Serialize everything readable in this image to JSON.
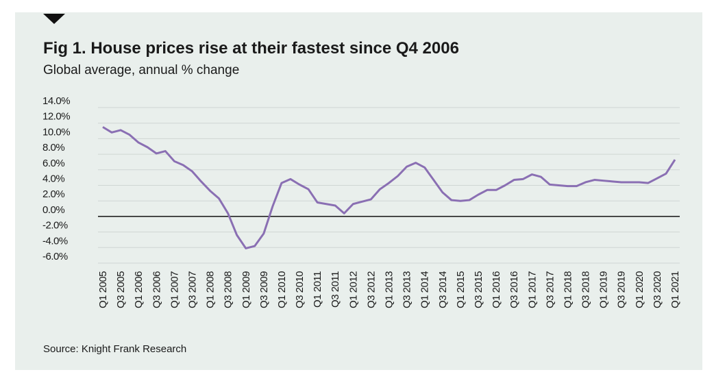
{
  "chart_data": {
    "type": "line",
    "title": "Fig 1. House prices rise at their fastest since Q4 2006",
    "subtitle": "Global average, annual % change",
    "source": "Source: Knight Frank Research",
    "categories": [
      "Q1 2005",
      null,
      "Q3 2005",
      null,
      "Q1 2006",
      null,
      "Q3 2006",
      null,
      "Q1 2007",
      null,
      "Q3 2007",
      null,
      "Q1 2008",
      null,
      "Q3 2008",
      null,
      "Q1 2009",
      null,
      "Q3 2009",
      null,
      "Q1 2010",
      null,
      "Q3 2010",
      null,
      "Q1 2011",
      null,
      "Q3 2011",
      null,
      "Q1 2012",
      null,
      "Q3 2012",
      null,
      "Q1 2013",
      null,
      "Q3 2013",
      null,
      "Q1 2014",
      null,
      "Q3 2014",
      null,
      "Q1 2015",
      null,
      "Q3 2015",
      null,
      "Q1 2016",
      null,
      "Q3 2016",
      null,
      "Q1 2017",
      null,
      "Q3 2017",
      null,
      "Q1 2018",
      null,
      "Q3 2018",
      null,
      "Q1 2019",
      null,
      "Q3 2019",
      null,
      "Q1 2020",
      null,
      "Q3 2020",
      null,
      "Q1 2021"
    ],
    "series": [
      {
        "color": "#8a6fb3",
        "values": [
          11.5,
          10.8,
          11.1,
          10.5,
          9.5,
          8.9,
          8.1,
          8.4,
          7.1,
          6.6,
          5.8,
          4.5,
          3.3,
          2.3,
          0.4,
          -2.4,
          -4.1,
          -3.8,
          -2.2,
          1.3,
          4.3,
          4.8,
          4.1,
          3.5,
          1.8,
          1.6,
          1.4,
          0.4,
          1.6,
          1.9,
          2.2,
          3.5,
          4.3,
          5.2,
          6.4,
          6.9,
          6.3,
          4.7,
          3.1,
          2.1,
          2.0,
          2.1,
          2.8,
          3.4,
          3.4,
          4.0,
          4.7,
          4.8,
          5.4,
          5.1,
          4.1,
          4.0,
          3.9,
          3.9,
          4.4,
          4.7,
          4.6,
          4.5,
          4.4,
          4.4,
          4.4,
          4.3,
          4.9,
          5.5,
          7.3
        ]
      }
    ],
    "ylim": [
      -6,
      14
    ],
    "yticks": [
      {
        "value": 14,
        "label": "14.0%"
      },
      {
        "value": 12,
        "label": "12.0%"
      },
      {
        "value": 10,
        "label": "10.0%"
      },
      {
        "value": 8,
        "label": "8.0%"
      },
      {
        "value": 6,
        "label": "6.0%"
      },
      {
        "value": 4,
        "label": "4.0%"
      },
      {
        "value": 2,
        "label": "2.0%"
      },
      {
        "value": 0,
        "label": "0.0%"
      },
      {
        "value": -2,
        "label": "-2.0%"
      },
      {
        "value": -4,
        "label": "-4.0%"
      },
      {
        "value": -6,
        "label": "-6.0%"
      }
    ],
    "grid": true
  }
}
